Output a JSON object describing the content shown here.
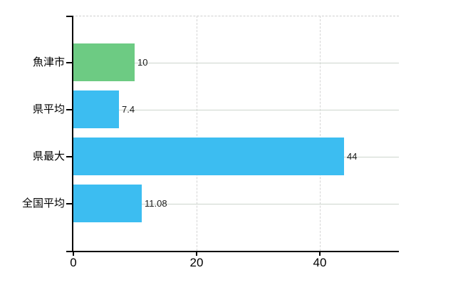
{
  "chart_data": {
    "type": "bar",
    "orientation": "horizontal",
    "title": "",
    "xlabel": "",
    "ylabel": "",
    "categories": [
      "魚津市",
      "県平均",
      "県最大",
      "全国平均"
    ],
    "values": [
      10,
      7.4,
      44,
      11.08
    ],
    "value_labels": [
      "10",
      "7.4",
      "44",
      "11.08"
    ],
    "bar_colors": [
      "#6dcb83",
      "#3cbdf1",
      "#3cbdf1",
      "#3cbdf1"
    ],
    "xlim": [
      0,
      52.9
    ],
    "x_ticks": [
      0,
      20,
      40
    ],
    "x_tick_labels": [
      "0",
      "20",
      "40"
    ],
    "grid": "on",
    "legend": "none"
  },
  "colors": {
    "highlight_bar": "#6dcb83",
    "default_bar": "#3cbdf1",
    "hgrid": "#cdd5cd",
    "dashed_grid": "#d4d4d4",
    "axis": "#000000",
    "background": "#ffffff"
  }
}
